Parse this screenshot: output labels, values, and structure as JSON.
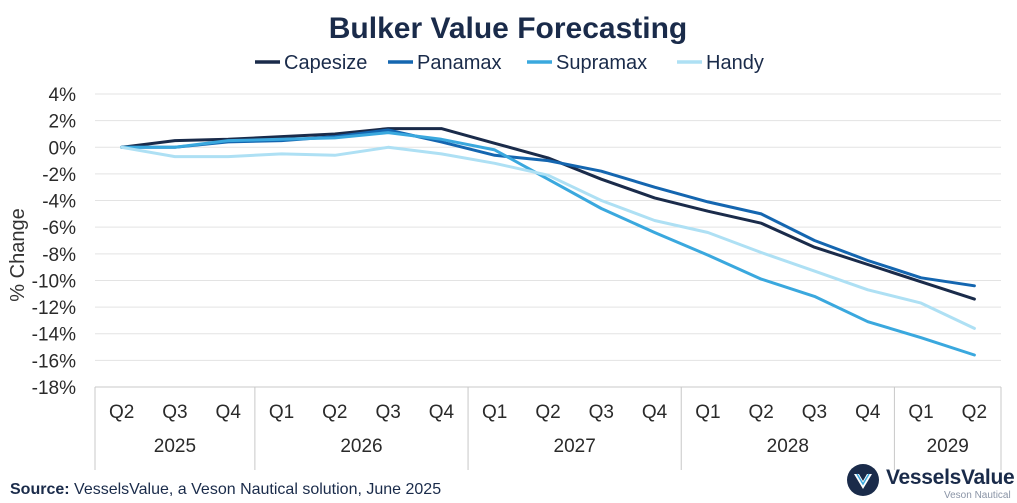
{
  "chart_data": {
    "type": "line",
    "title": "Bulker Value Forecasting",
    "ylabel": "% Change",
    "xlabel": "",
    "ylim": [
      -18,
      4
    ],
    "yticks": [
      4,
      2,
      0,
      -2,
      -4,
      -6,
      -8,
      -10,
      -12,
      -14,
      -16,
      -18
    ],
    "y_tick_format": "percent",
    "grid": "horizontal",
    "legend_position": "top",
    "x_quarters": [
      "Q2",
      "Q3",
      "Q4",
      "Q1",
      "Q2",
      "Q3",
      "Q4",
      "Q1",
      "Q2",
      "Q3",
      "Q4",
      "Q1",
      "Q2",
      "Q3",
      "Q4",
      "Q1",
      "Q2"
    ],
    "x_years": [
      {
        "label": "2025",
        "start": 0,
        "end": 2
      },
      {
        "label": "2026",
        "start": 3,
        "end": 6
      },
      {
        "label": "2027",
        "start": 7,
        "end": 10
      },
      {
        "label": "2028",
        "start": 11,
        "end": 14
      },
      {
        "label": "2029",
        "start": 15,
        "end": 16
      }
    ],
    "series": [
      {
        "name": "Capesize",
        "color": "#1a2b4a",
        "values": [
          0,
          0.5,
          0.6,
          0.8,
          1.0,
          1.4,
          1.4,
          0.3,
          -0.8,
          -2.4,
          -3.8,
          -4.8,
          -5.7,
          -7.5,
          -8.8,
          -10.1,
          -11.4
        ]
      },
      {
        "name": "Panamax",
        "color": "#1466b0",
        "values": [
          0,
          0.0,
          0.4,
          0.5,
          0.8,
          1.3,
          0.4,
          -0.6,
          -1.0,
          -1.8,
          -3.0,
          -4.1,
          -5.0,
          -7.0,
          -8.5,
          -9.8,
          -10.4
        ]
      },
      {
        "name": "Supramax",
        "color": "#3aa8de",
        "values": [
          0,
          0.0,
          0.5,
          0.6,
          0.7,
          1.1,
          0.6,
          -0.2,
          -2.4,
          -4.6,
          -6.4,
          -8.1,
          -9.9,
          -11.2,
          -13.1,
          -14.3,
          -15.6
        ]
      },
      {
        "name": "Handy",
        "color": "#aee0f4",
        "values": [
          0,
          -0.7,
          -0.7,
          -0.5,
          -0.6,
          0.0,
          -0.5,
          -1.2,
          -2.1,
          -4.0,
          -5.5,
          -6.4,
          -7.9,
          -9.3,
          -10.7,
          -11.7,
          -13.6
        ]
      }
    ]
  },
  "footer": {
    "source_label": "Source:",
    "source_text": "VesselsValue, a Veson Nautical solution, June 2025"
  },
  "logo": {
    "name": "VesselsValue",
    "subtitle": "Veson Nautical"
  }
}
